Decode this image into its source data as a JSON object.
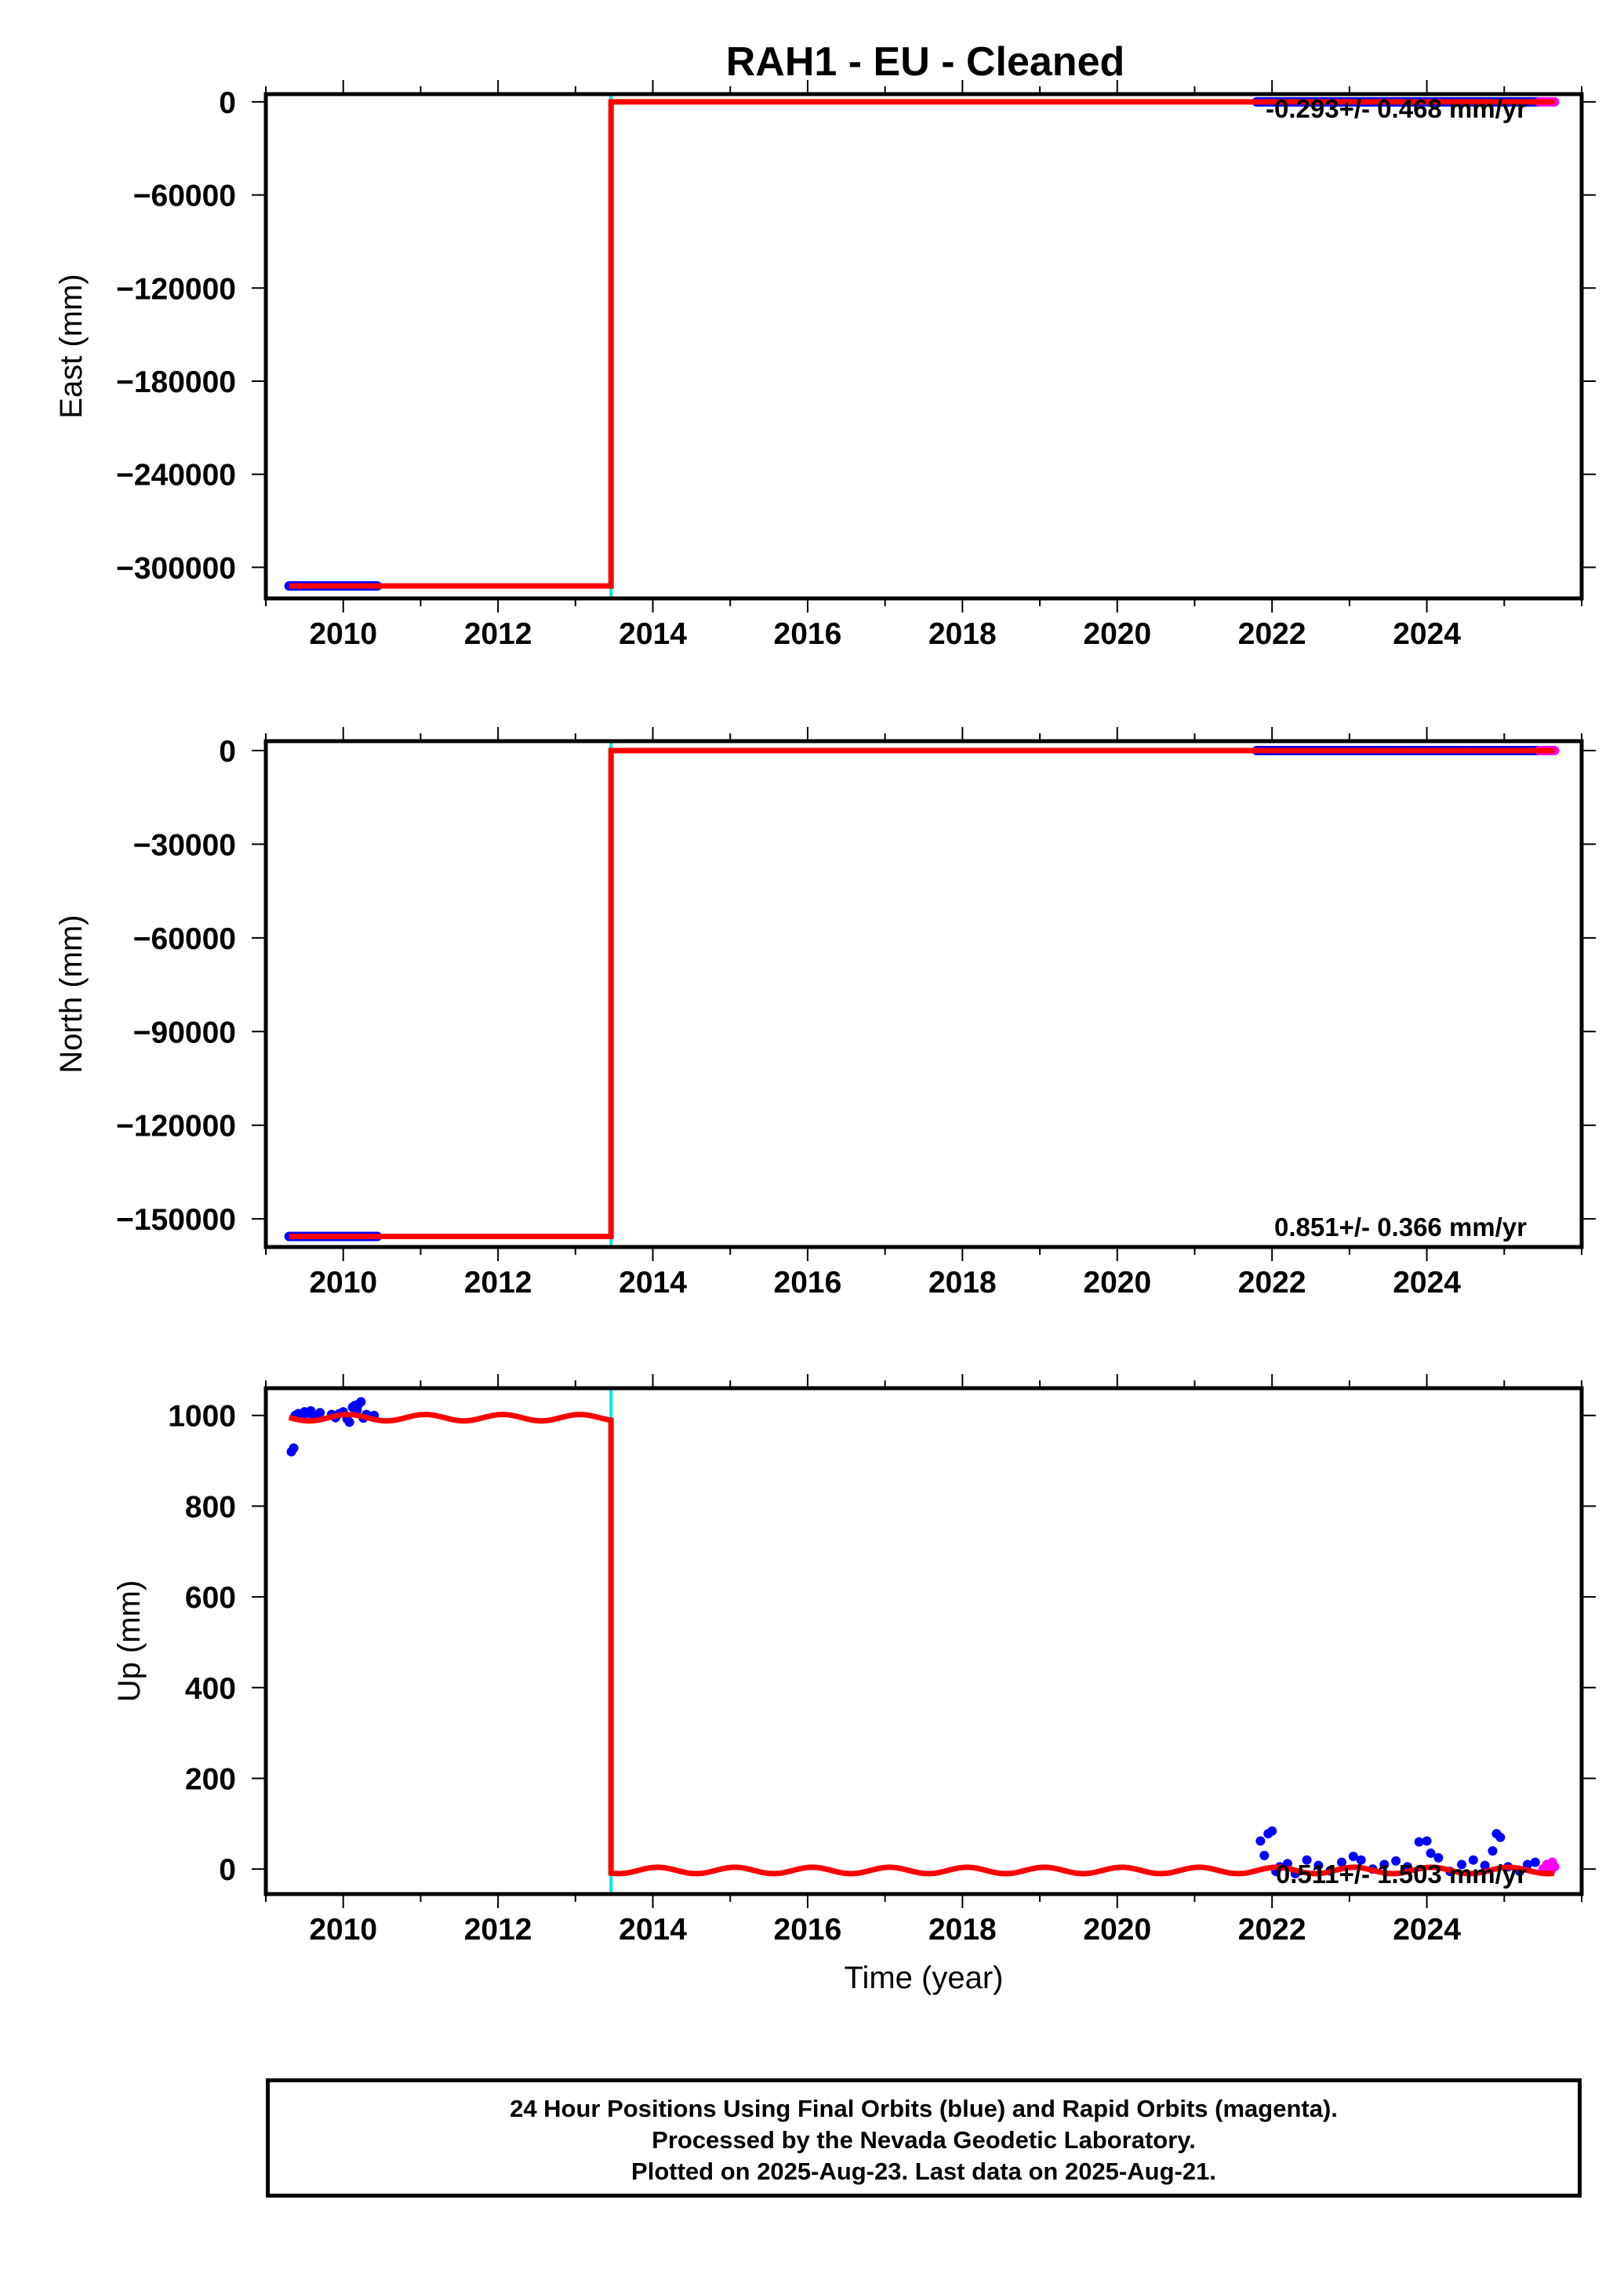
{
  "title": "RAH1  - EU - Cleaned",
  "footer": {
    "line1": "24 Hour Positions Using Final Orbits (blue) and Rapid Orbits (magenta).",
    "line2": "Processed by the Nevada Geodetic Laboratory.",
    "line3": "Plotted on 2025-Aug-23. Last data on 2025-Aug-21."
  },
  "colors": {
    "final_orbits": "#0000ff",
    "rapid_orbits": "#ff00ff",
    "model": "#ff0000",
    "offset_marker": "#00e5e5"
  },
  "chart_data": [
    {
      "type": "scatter",
      "panel": "east",
      "ylabel": "East (mm)",
      "xlabel": "",
      "xlim": [
        2009.0,
        2026.0
      ],
      "ylim": [
        -320000,
        5000
      ],
      "xticks": [
        2010,
        2012,
        2014,
        2016,
        2018,
        2020,
        2022,
        2024
      ],
      "yticks": [
        0,
        -60000,
        -120000,
        -180000,
        -240000,
        -300000
      ],
      "ytick_labels": [
        "0",
        "−60000",
        "−120000",
        "−180000",
        "−240000",
        "−300000"
      ],
      "rate_label": "-0.293+/- 0.468 mm/yr",
      "offset_year": 2013.46,
      "model_segments": [
        {
          "x": [
            2009.3,
            2013.46
          ],
          "y": [
            -312000,
            -312000
          ]
        },
        {
          "x": [
            2013.46,
            2025.65
          ],
          "y": [
            0,
            0
          ]
        }
      ],
      "final_orbits": {
        "x_range": [
          [
            2009.3,
            2010.45
          ],
          [
            2021.8,
            2025.45
          ]
        ],
        "y_values": [
          -312000,
          0
        ]
      },
      "rapid_orbits": {
        "x_range": [
          [
            2025.45,
            2025.65
          ]
        ],
        "y_values": [
          0
        ]
      }
    },
    {
      "type": "scatter",
      "panel": "north",
      "ylabel": "North (mm)",
      "xlabel": "",
      "xlim": [
        2009.0,
        2026.0
      ],
      "ylim": [
        -159000,
        3000
      ],
      "xticks": [
        2010,
        2012,
        2014,
        2016,
        2018,
        2020,
        2022,
        2024
      ],
      "yticks": [
        0,
        -30000,
        -60000,
        -90000,
        -120000,
        -150000
      ],
      "ytick_labels": [
        "0",
        "−30000",
        "−60000",
        "−90000",
        "−120000",
        "−150000"
      ],
      "rate_label": "0.851+/- 0.366 mm/yr",
      "offset_year": 2013.46,
      "model_segments": [
        {
          "x": [
            2009.3,
            2013.46
          ],
          "y": [
            -155600,
            -155600
          ]
        },
        {
          "x": [
            2013.46,
            2025.65
          ],
          "y": [
            0,
            0
          ]
        }
      ],
      "final_orbits": {
        "x_range": [
          [
            2009.3,
            2010.45
          ],
          [
            2021.8,
            2025.45
          ]
        ],
        "y_values": [
          -155600,
          0
        ]
      },
      "rapid_orbits": {
        "x_range": [
          [
            2025.45,
            2025.65
          ]
        ],
        "y_values": [
          0
        ]
      }
    },
    {
      "type": "scatter",
      "panel": "up",
      "ylabel": "Up (mm)",
      "xlabel": "Time (year)",
      "xlim": [
        2009.0,
        2026.0
      ],
      "ylim": [
        -55,
        1060
      ],
      "xticks": [
        2010,
        2012,
        2014,
        2016,
        2018,
        2020,
        2022,
        2024
      ],
      "yticks": [
        0,
        200,
        400,
        600,
        800,
        1000
      ],
      "ytick_labels": [
        "0",
        "200",
        "400",
        "600",
        "800",
        "1000"
      ],
      "rate_label": "0.511+/- 1.503 mm/yr",
      "offset_year": 2013.46,
      "model_segments": [
        {
          "x": [
            2009.3,
            2013.46
          ],
          "level": 995,
          "seasonal_amplitude": 7
        },
        {
          "x": [
            2013.46,
            2025.65
          ],
          "level": -3,
          "seasonal_amplitude": 7
        }
      ],
      "final_orbits": {
        "points": [
          [
            2009.33,
            920
          ],
          [
            2009.36,
            928
          ],
          [
            2009.38,
            1000
          ],
          [
            2009.42,
            1004
          ],
          [
            2009.47,
            998
          ],
          [
            2009.5,
            1008
          ],
          [
            2009.55,
            1005
          ],
          [
            2009.58,
            1010
          ],
          [
            2009.62,
            1000
          ],
          [
            2009.65,
            996
          ],
          [
            2009.7,
            1006
          ],
          [
            2009.85,
            1002
          ],
          [
            2009.9,
            995
          ],
          [
            2009.95,
            1004
          ],
          [
            2010.0,
            1008
          ],
          [
            2010.05,
            992
          ],
          [
            2010.08,
            985
          ],
          [
            2010.12,
            1018
          ],
          [
            2010.15,
            1022
          ],
          [
            2010.18,
            1012
          ],
          [
            2010.2,
            1025
          ],
          [
            2010.23,
            1030
          ],
          [
            2010.26,
            994
          ],
          [
            2010.3,
            1002
          ],
          [
            2010.35,
            998
          ],
          [
            2010.4,
            1000
          ],
          [
            2021.85,
            62
          ],
          [
            2021.9,
            30
          ],
          [
            2021.95,
            78
          ],
          [
            2022.0,
            84
          ],
          [
            2022.05,
            -5
          ],
          [
            2022.1,
            5
          ],
          [
            2022.2,
            12
          ],
          [
            2022.3,
            -10
          ],
          [
            2022.45,
            20
          ],
          [
            2022.6,
            8
          ],
          [
            2022.75,
            -4
          ],
          [
            2022.9,
            15
          ],
          [
            2023.05,
            28
          ],
          [
            2023.15,
            20
          ],
          [
            2023.3,
            0
          ],
          [
            2023.45,
            10
          ],
          [
            2023.6,
            18
          ],
          [
            2023.75,
            5
          ],
          [
            2023.9,
            60
          ],
          [
            2024.0,
            62
          ],
          [
            2024.05,
            35
          ],
          [
            2024.15,
            25
          ],
          [
            2024.3,
            -5
          ],
          [
            2024.45,
            10
          ],
          [
            2024.6,
            20
          ],
          [
            2024.75,
            8
          ],
          [
            2024.85,
            40
          ],
          [
            2024.9,
            78
          ],
          [
            2024.95,
            70
          ],
          [
            2025.05,
            5
          ],
          [
            2025.2,
            -5
          ],
          [
            2025.3,
            10
          ],
          [
            2025.4,
            15
          ]
        ]
      },
      "rapid_orbits": {
        "points": [
          [
            2025.5,
            0
          ],
          [
            2025.55,
            10
          ],
          [
            2025.6,
            -5
          ],
          [
            2025.62,
            15
          ],
          [
            2025.65,
            5
          ]
        ]
      }
    }
  ]
}
